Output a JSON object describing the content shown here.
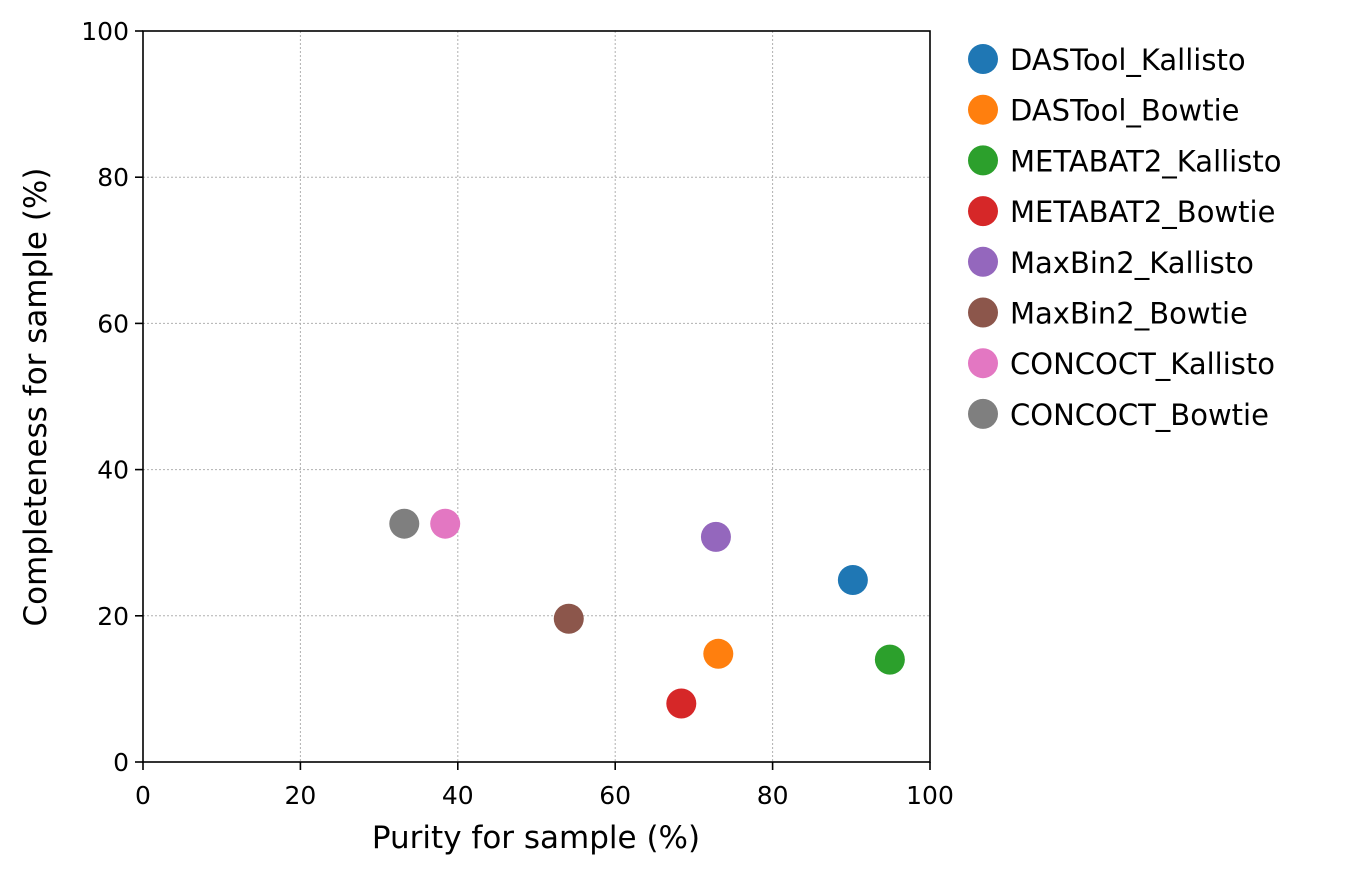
{
  "chart_data": {
    "type": "scatter",
    "title": "",
    "xlabel": "Purity for sample (%)",
    "ylabel": "Completeness for sample (%)",
    "xlim": [
      0,
      100
    ],
    "ylim": [
      0,
      100
    ],
    "xticks": [
      0,
      20,
      40,
      60,
      80,
      100
    ],
    "yticks": [
      0,
      20,
      40,
      60,
      80,
      100
    ],
    "grid": true,
    "legend_position": "outside-right",
    "series": [
      {
        "name": "DASTool_Kallisto",
        "color": "#1f77b4",
        "x": [
          90.2
        ],
        "y": [
          24.9
        ]
      },
      {
        "name": "DASTool_Bowtie",
        "color": "#ff7f0e",
        "x": [
          73.1
        ],
        "y": [
          14.8
        ]
      },
      {
        "name": "METABAT2_Kallisto",
        "color": "#2ca02c",
        "x": [
          94.9
        ],
        "y": [
          14.0
        ]
      },
      {
        "name": "METABAT2_Bowtie",
        "color": "#d62728",
        "x": [
          68.4
        ],
        "y": [
          8.0
        ]
      },
      {
        "name": "MaxBin2_Kallisto",
        "color": "#9467bd",
        "x": [
          72.8
        ],
        "y": [
          30.8
        ]
      },
      {
        "name": "MaxBin2_Bowtie",
        "color": "#8c564b",
        "x": [
          54.1
        ],
        "y": [
          19.6
        ]
      },
      {
        "name": "CONCOCT_Kallisto",
        "color": "#e377c2",
        "x": [
          38.4
        ],
        "y": [
          32.6
        ]
      },
      {
        "name": "CONCOCT_Bowtie",
        "color": "#7f7f7f",
        "x": [
          33.2
        ],
        "y": [
          32.6
        ]
      }
    ]
  }
}
